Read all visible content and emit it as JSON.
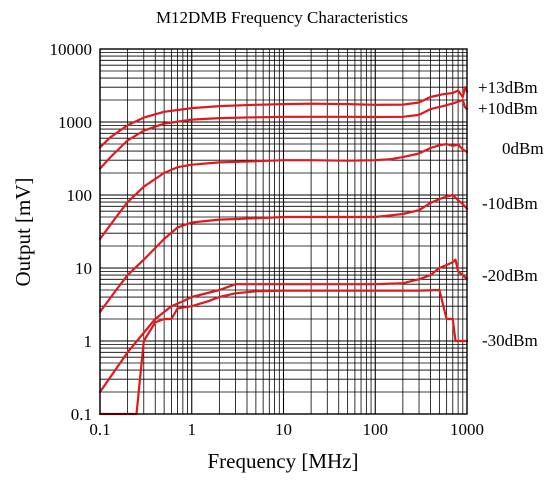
{
  "chart_data": {
    "type": "line",
    "title": "M12DMB Frequency Characteristics",
    "xlabel": "Frequency [MHz]",
    "ylabel": "Output [mV]",
    "x_scale": "log",
    "y_scale": "log",
    "xlim": [
      0.1,
      1000
    ],
    "ylim": [
      0.1,
      10000
    ],
    "grid": true,
    "x_ticks": [
      {
        "value": 0.1,
        "label": "0.1"
      },
      {
        "value": 1,
        "label": "1"
      },
      {
        "value": 10,
        "label": "10"
      },
      {
        "value": 100,
        "label": "100"
      },
      {
        "value": 1000,
        "label": "1000"
      }
    ],
    "y_ticks": [
      {
        "value": 0.1,
        "label": "0.1"
      },
      {
        "value": 1,
        "label": "1"
      },
      {
        "value": 10,
        "label": "10"
      },
      {
        "value": 100,
        "label": "100"
      },
      {
        "value": 1000,
        "label": "1000"
      },
      {
        "value": 10000,
        "label": "10000"
      }
    ],
    "line_color": "#e0191c",
    "series": [
      {
        "name": "+13dBm",
        "points": [
          [
            0.1,
            450
          ],
          [
            0.13,
            620
          ],
          [
            0.2,
            900
          ],
          [
            0.3,
            1150
          ],
          [
            0.5,
            1380
          ],
          [
            1,
            1550
          ],
          [
            2,
            1650
          ],
          [
            5,
            1720
          ],
          [
            10,
            1760
          ],
          [
            20,
            1780
          ],
          [
            50,
            1760
          ],
          [
            100,
            1720
          ],
          [
            200,
            1730
          ],
          [
            300,
            1850
          ],
          [
            400,
            2200
          ],
          [
            550,
            2400
          ],
          [
            700,
            2500
          ],
          [
            800,
            2700
          ],
          [
            900,
            2200
          ],
          [
            950,
            3000
          ],
          [
            1000,
            2600
          ]
        ]
      },
      {
        "name": "+10dBm",
        "points": [
          [
            0.1,
            230
          ],
          [
            0.13,
            330
          ],
          [
            0.2,
            560
          ],
          [
            0.3,
            760
          ],
          [
            0.5,
            950
          ],
          [
            1,
            1080
          ],
          [
            2,
            1130
          ],
          [
            5,
            1160
          ],
          [
            10,
            1180
          ],
          [
            20,
            1180
          ],
          [
            50,
            1180
          ],
          [
            100,
            1170
          ],
          [
            200,
            1180
          ],
          [
            300,
            1250
          ],
          [
            400,
            1500
          ],
          [
            550,
            1650
          ],
          [
            700,
            1800
          ],
          [
            800,
            1900
          ],
          [
            900,
            2000
          ],
          [
            950,
            1600
          ],
          [
            1000,
            1500
          ]
        ]
      },
      {
        "name": "0dBm",
        "points": [
          [
            0.1,
            25
          ],
          [
            0.15,
            50
          ],
          [
            0.2,
            80
          ],
          [
            0.3,
            130
          ],
          [
            0.5,
            200
          ],
          [
            0.7,
            240
          ],
          [
            1,
            260
          ],
          [
            2,
            280
          ],
          [
            5,
            290
          ],
          [
            10,
            300
          ],
          [
            20,
            300
          ],
          [
            50,
            295
          ],
          [
            100,
            300
          ],
          [
            150,
            310
          ],
          [
            200,
            330
          ],
          [
            300,
            370
          ],
          [
            400,
            440
          ],
          [
            500,
            480
          ],
          [
            600,
            500
          ],
          [
            700,
            470
          ],
          [
            800,
            490
          ],
          [
            900,
            420
          ],
          [
            1000,
            390
          ]
        ]
      },
      {
        "name": "-10dBm",
        "points": [
          [
            0.1,
            2.5
          ],
          [
            0.15,
            5
          ],
          [
            0.2,
            8
          ],
          [
            0.3,
            13
          ],
          [
            0.5,
            25
          ],
          [
            0.7,
            36
          ],
          [
            1,
            42
          ],
          [
            2,
            46
          ],
          [
            5,
            48
          ],
          [
            10,
            50
          ],
          [
            20,
            50
          ],
          [
            50,
            50
          ],
          [
            100,
            50
          ],
          [
            200,
            55
          ],
          [
            300,
            62
          ],
          [
            400,
            78
          ],
          [
            500,
            88
          ],
          [
            600,
            95
          ],
          [
            700,
            100
          ],
          [
            800,
            85
          ],
          [
            900,
            75
          ],
          [
            1000,
            65
          ]
        ]
      },
      {
        "name": "-20dBm",
        "points": [
          [
            0.1,
            0.2
          ],
          [
            0.2,
            0.7
          ],
          [
            0.4,
            2
          ],
          [
            0.6,
            3
          ],
          [
            0.8,
            3.5
          ],
          [
            1,
            4
          ],
          [
            2,
            5
          ],
          [
            3,
            6
          ],
          [
            5,
            6
          ],
          [
            10,
            6
          ],
          [
            20,
            6
          ],
          [
            50,
            6
          ],
          [
            100,
            6
          ],
          [
            200,
            6.2
          ],
          [
            300,
            7
          ],
          [
            400,
            8
          ],
          [
            500,
            10
          ],
          [
            600,
            11
          ],
          [
            700,
            12
          ],
          [
            750,
            13
          ],
          [
            800,
            9
          ],
          [
            900,
            8
          ],
          [
            1000,
            7
          ]
        ]
      },
      {
        "name": "-30dBm",
        "points": [
          [
            0.1,
            0.0
          ],
          [
            0.25,
            0.0
          ],
          [
            0.3,
            1
          ],
          [
            0.4,
            1.8
          ],
          [
            0.5,
            2
          ],
          [
            0.6,
            2
          ],
          [
            0.7,
            2.8
          ],
          [
            1,
            3
          ],
          [
            1.5,
            3.5
          ],
          [
            2,
            4
          ],
          [
            3,
            4.5
          ],
          [
            5,
            4.8
          ],
          [
            10,
            4.9
          ],
          [
            20,
            4.9
          ],
          [
            50,
            4.9
          ],
          [
            100,
            4.9
          ],
          [
            200,
            4.9
          ],
          [
            300,
            4.9
          ],
          [
            500,
            5
          ],
          [
            600,
            2
          ],
          [
            700,
            2
          ],
          [
            750,
            1
          ],
          [
            800,
            1
          ],
          [
            1000,
            1
          ]
        ]
      }
    ]
  }
}
